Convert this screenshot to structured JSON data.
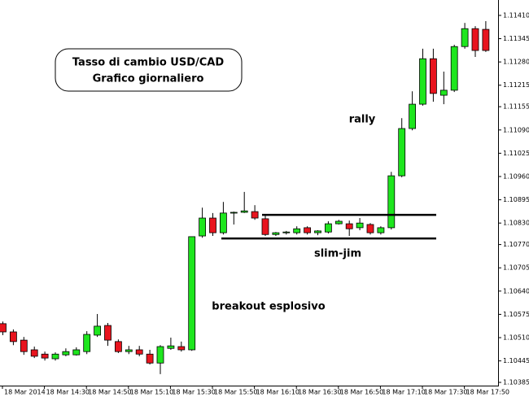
{
  "chart_data": {
    "type": "candlestick",
    "title": "Tasso di cambio USD/CAD",
    "subtitle": "Grafico giornaliero",
    "annotations": [
      "rally",
      "slim-jim",
      "breakout esplosivo"
    ],
    "categories": [
      "18 Mar 2014",
      null,
      null,
      null,
      "18 Mar 14:30",
      null,
      null,
      null,
      "18 Mar 14:50",
      null,
      null,
      null,
      "18 Mar 15:10",
      null,
      null,
      null,
      "18 Mar 15:30",
      null,
      null,
      null,
      "18 Mar 15:50",
      null,
      null,
      null,
      "18 Mar 16:10",
      null,
      null,
      null,
      "18 Mar 16:30",
      null,
      null,
      null,
      "18 Mar 16:50",
      null,
      null,
      null,
      "18 Mar 17:10",
      null,
      null,
      null,
      "18 Mar 17:30",
      null,
      null,
      null,
      "18 Mar 17:50",
      null,
      null
    ],
    "open": [
      1.10549,
      1.10526,
      1.10503,
      1.10476,
      1.10464,
      1.10451,
      1.10462,
      1.10462,
      1.10471,
      1.10517,
      1.10544,
      1.10499,
      1.10471,
      1.10476,
      1.10464,
      1.10439,
      1.1048,
      1.10485,
      1.10476,
      1.10794,
      1.10844,
      1.10803,
      1.10858,
      1.1086,
      1.10862,
      1.10842,
      1.10798,
      1.10803,
      1.10803,
      1.10817,
      1.10803,
      1.10805,
      1.10828,
      1.10828,
      1.10817,
      1.10826,
      1.10803,
      1.10817,
      1.10962,
      1.11094,
      1.11162,
      1.11289,
      1.11187,
      1.11201,
      1.11323,
      1.11373,
      1.11371
    ],
    "high": [
      1.10555,
      1.10533,
      1.10512,
      1.10485,
      1.10471,
      1.10469,
      1.1048,
      1.10483,
      1.10528,
      1.10576,
      1.10551,
      1.10505,
      1.10487,
      1.10487,
      1.10476,
      1.10489,
      1.1051,
      1.10499,
      1.10792,
      1.10873,
      1.10858,
      1.10889,
      1.10862,
      1.10917,
      1.1088,
      1.10851,
      1.10805,
      1.10808,
      1.10821,
      1.10821,
      1.1081,
      1.10835,
      1.10839,
      1.10837,
      1.10844,
      1.1083,
      1.10821,
      1.10973,
      1.11123,
      1.11198,
      1.11317,
      1.11317,
      1.11253,
      1.11328,
      1.11389,
      1.1138,
      1.11394
    ],
    "low": [
      1.10517,
      1.10489,
      1.10462,
      1.10453,
      1.10446,
      1.10446,
      1.10458,
      1.1046,
      1.10464,
      1.10512,
      1.10487,
      1.10467,
      1.10464,
      1.10458,
      1.10435,
      1.10408,
      1.10476,
      1.10471,
      1.10473,
      1.10789,
      1.10794,
      1.10798,
      1.10826,
      1.10858,
      1.10839,
      1.10794,
      1.10794,
      1.10798,
      1.10798,
      1.10798,
      1.10796,
      1.10801,
      1.10826,
      1.10794,
      1.1081,
      1.10798,
      1.10798,
      1.10812,
      1.10958,
      1.11089,
      1.11158,
      1.11169,
      1.11162,
      1.11196,
      1.11317,
      1.11294,
      1.11308
    ],
    "close": [
      1.10526,
      1.10499,
      1.10471,
      1.10458,
      1.10453,
      1.10464,
      1.10471,
      1.10476,
      1.10519,
      1.10542,
      1.10503,
      1.10471,
      1.10476,
      1.10464,
      1.10439,
      1.10485,
      1.10487,
      1.10476,
      1.10792,
      1.10844,
      1.10803,
      1.10858,
      1.1086,
      1.10864,
      1.10844,
      1.10798,
      1.10803,
      1.10805,
      1.10814,
      1.10803,
      1.10808,
      1.10828,
      1.10835,
      1.10814,
      1.1083,
      1.10803,
      1.10817,
      1.10962,
      1.11094,
      1.11162,
      1.11289,
      1.11192,
      1.11201,
      1.11323,
      1.11373,
      1.11312,
      1.11312
    ],
    "up_color": "#1ee61e",
    "down_color": "#e8141e",
    "levels": [
      1.10853,
      1.10787
    ],
    "ylim": [
      1.10376,
      1.11453
    ],
    "yticks": [
      {
        "value": 1.1141,
        "label": "1.11410"
      },
      1.11345,
      {
        "value": 1.1128,
        "label": "1.11280"
      },
      1.11215,
      1.11155,
      {
        "value": 1.1109,
        "label": "1.11090"
      },
      1.11025,
      {
        "value": 1.1096,
        "label": "1.10960"
      },
      1.10895,
      {
        "value": 1.1083,
        "label": "1.10830"
      },
      {
        "value": 1.1077,
        "label": "1.10770"
      },
      1.10705,
      {
        "value": 1.1064,
        "label": "1.10640"
      },
      1.10575,
      {
        "value": 1.1051,
        "label": "1.10510"
      },
      1.10445,
      1.10385
    ]
  }
}
